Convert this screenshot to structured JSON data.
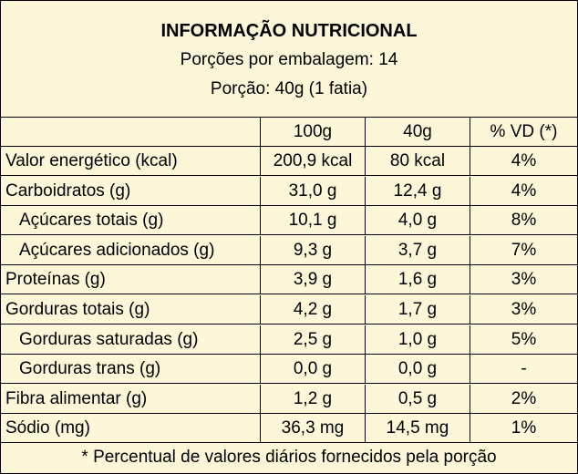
{
  "header": {
    "title": "INFORMAÇÃO NUTRICIONAL",
    "servings_per_package": "Porções por embalagem: 14",
    "serving_size": "Porção: 40g (1 fatia)"
  },
  "columns": [
    "",
    "100g",
    "40g",
    "% VD (*)"
  ],
  "rows": [
    {
      "name": "Valor energético (kcal)",
      "per100": "200,9 kcal",
      "perServing": "80 kcal",
      "dv": "4%",
      "indent": false
    },
    {
      "name": "Carboidratos (g)",
      "per100": "31,0 g",
      "perServing": "12,4 g",
      "dv": "4%",
      "indent": false
    },
    {
      "name": "Açúcares totais (g)",
      "per100": "10,1 g",
      "perServing": "4,0 g",
      "dv": "8%",
      "indent": true
    },
    {
      "name": "Açúcares adicionados (g)",
      "per100": "9,3 g",
      "perServing": "3,7 g",
      "dv": "7%",
      "indent": true
    },
    {
      "name": "Proteínas (g)",
      "per100": "3,9 g",
      "perServing": "1,6 g",
      "dv": "3%",
      "indent": false
    },
    {
      "name": "Gorduras totais (g)",
      "per100": "4,2 g",
      "perServing": "1,7 g",
      "dv": "3%",
      "indent": false
    },
    {
      "name": "Gorduras saturadas (g)",
      "per100": "2,5 g",
      "perServing": "1,0 g",
      "dv": "5%",
      "indent": true
    },
    {
      "name": "Gorduras trans (g)",
      "per100": "0,0 g",
      "perServing": "0,0 g",
      "dv": "-",
      "indent": true
    },
    {
      "name": "Fibra alimentar (g)",
      "per100": "1,2 g",
      "perServing": "0,5 g",
      "dv": "2%",
      "indent": false
    },
    {
      "name": "Sódio (mg)",
      "per100": "36,3 mg",
      "perServing": "14,5 mg",
      "dv": "1%",
      "indent": false
    }
  ],
  "footer": "* Percentual de valores diários fornecidos pela porção",
  "colors": {
    "background": "#fdf6d8",
    "border": "#000000",
    "text": "#000000"
  }
}
